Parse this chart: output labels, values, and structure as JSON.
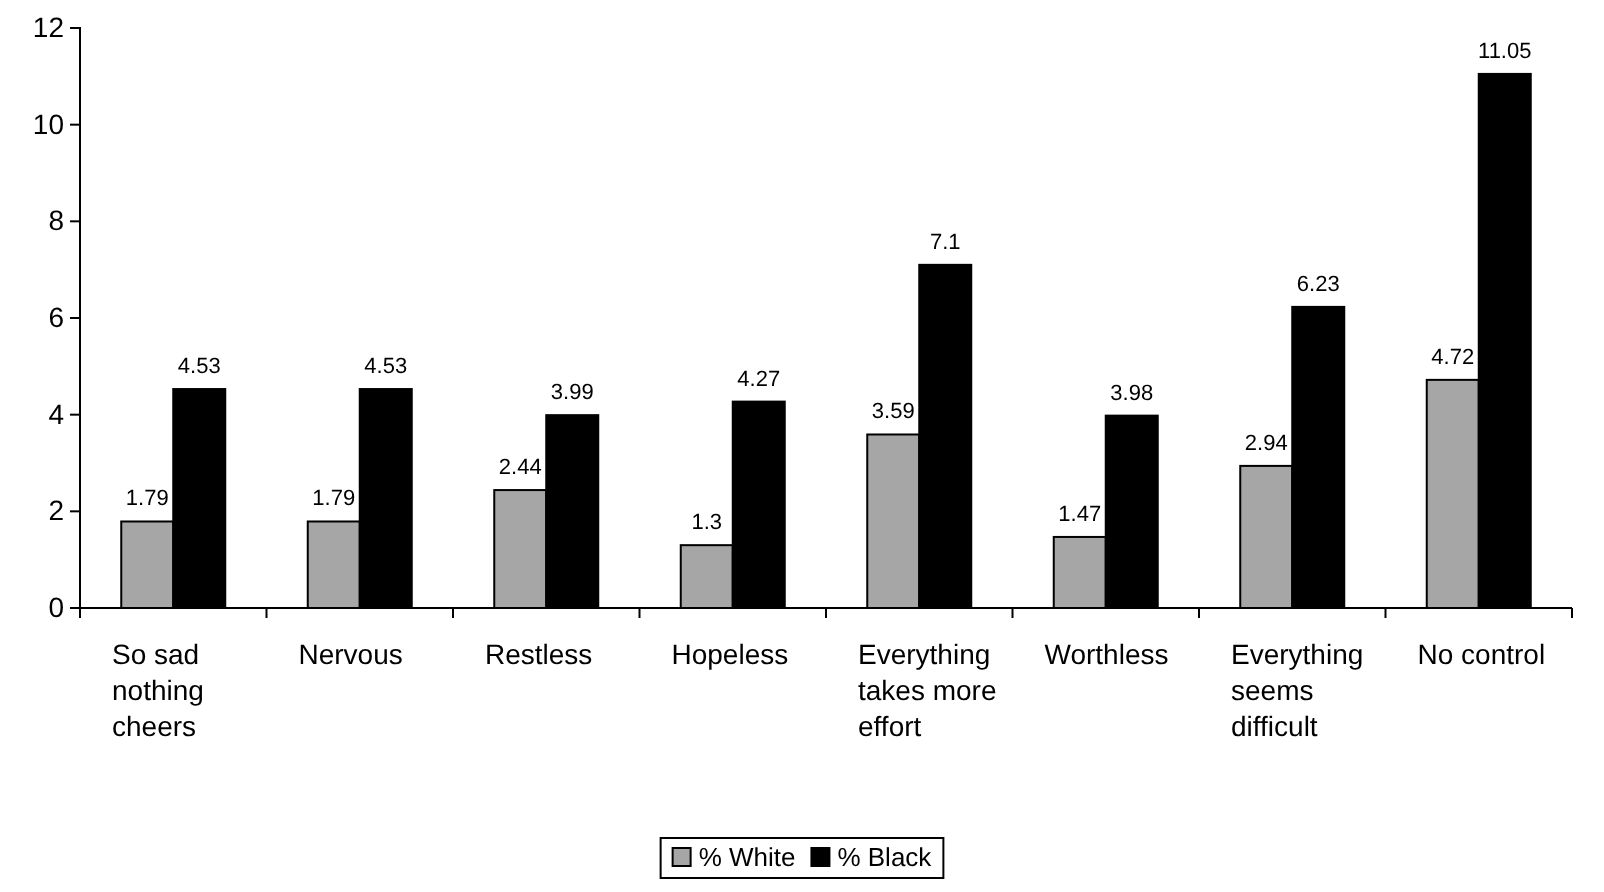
{
  "chart_data": {
    "type": "bar",
    "categories": [
      "So sad nothing cheers",
      "Nervous",
      "Restless",
      "Hopeless",
      "Everything takes more effort",
      "Worthless",
      "Everything seems difficult",
      "No control"
    ],
    "series": [
      {
        "name": "% White",
        "color": "#a6a6a6",
        "values": [
          1.79,
          1.79,
          2.44,
          1.3,
          3.59,
          1.47,
          2.94,
          4.72
        ]
      },
      {
        "name": "% Black",
        "color": "#000000",
        "values": [
          4.53,
          4.53,
          3.99,
          4.27,
          7.1,
          3.98,
          6.23,
          11.05
        ]
      }
    ],
    "ylim": [
      0,
      12
    ],
    "yticks": [
      0,
      2,
      4,
      6,
      8,
      10,
      12
    ],
    "data_labels": true,
    "legend": "bottom"
  }
}
